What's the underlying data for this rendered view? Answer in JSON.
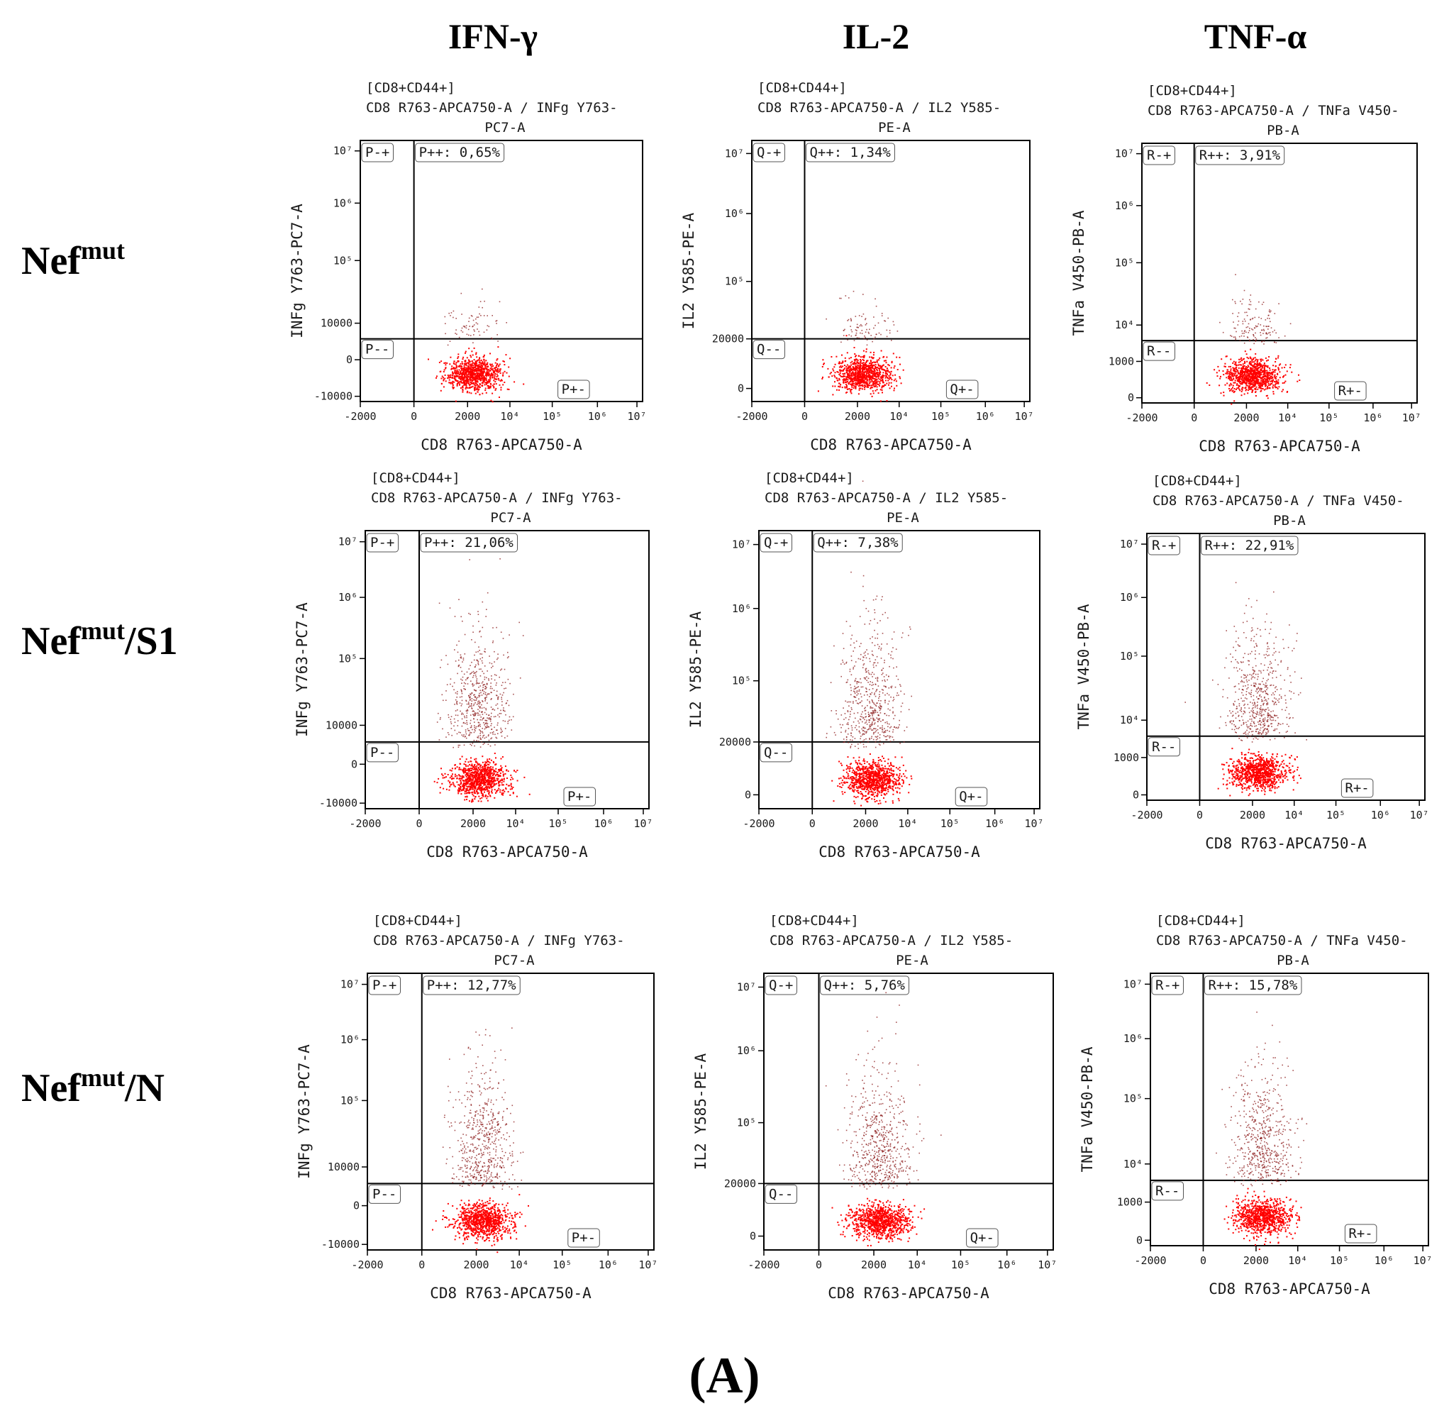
{
  "column_headers": [
    "IFN-γ",
    "IL-2",
    "TNF-α"
  ],
  "rows": [
    {
      "base": "Nef",
      "sup": "mut",
      "suffix": ""
    },
    {
      "base": "Nef",
      "sup": "mut",
      "suffix": "/S1"
    },
    {
      "base": "Nef",
      "sup": "mut",
      "suffix": "/N"
    }
  ],
  "panel_label": "(A)",
  "chart_data": [
    {
      "type": "scatter",
      "row": "Nefmut",
      "cytokine": "IFN-γ",
      "title_lines": [
        "[CD8+CD44+]",
        "CD8 R763-APCA750-A / INFg Y763-",
        "PC7-A"
      ],
      "xlabel": "CD8 R763-APCA750-A",
      "ylabel": "INFg Y763-PC7-A",
      "xticks": [
        "-2000",
        "0",
        "2000",
        "10⁴",
        "10⁵",
        "10⁶",
        "10⁷"
      ],
      "yticks": [
        "10⁷",
        "10⁶",
        "10⁵",
        "10000",
        "0",
        "-10000"
      ],
      "quadrants": {
        "upper_left": "P-+",
        "upper_right": "P++: 0,65%",
        "lower_left": "P--",
        "lower_right": "P+-"
      },
      "positive_percent": 0.65,
      "dim_fraction": 0.005
    },
    {
      "type": "scatter",
      "row": "Nefmut",
      "cytokine": "IL-2",
      "title_lines": [
        "[CD8+CD44+]",
        "CD8 R763-APCA750-A / IL2 Y585-",
        "PE-A"
      ],
      "xlabel": "CD8 R763-APCA750-A",
      "ylabel": "IL2 Y585-PE-A",
      "xticks": [
        "-2000",
        "0",
        "2000",
        "10⁴",
        "10⁵",
        "10⁶",
        "10⁷"
      ],
      "yticks": [
        "10⁷",
        "10⁶",
        "10⁵",
        "20000",
        "0"
      ],
      "quadrants": {
        "upper_left": "Q-+",
        "upper_right": "Q++: 1,34%",
        "lower_left": "Q--",
        "lower_right": "Q+-"
      },
      "positive_percent": 1.34,
      "dim_fraction": 0.01
    },
    {
      "type": "scatter",
      "row": "Nefmut",
      "cytokine": "TNF-α",
      "title_lines": [
        "[CD8+CD44+]",
        "CD8 R763-APCA750-A / TNFa V450-",
        "PB-A"
      ],
      "xlabel": "CD8 R763-APCA750-A",
      "ylabel": "TNFa V450-PB-A",
      "xticks": [
        "-2000",
        "0",
        "2000",
        "10⁴",
        "10⁵",
        "10⁶",
        "10⁷"
      ],
      "yticks": [
        "10⁷",
        "10⁶",
        "10⁵",
        "10⁴",
        "1000",
        "0"
      ],
      "quadrants": {
        "upper_left": "R-+",
        "upper_right": "R++: 3,91%",
        "lower_left": "R--",
        "lower_right": "R+-"
      },
      "positive_percent": 3.91,
      "dim_fraction": 0.03
    },
    {
      "type": "scatter",
      "row": "Nefmut/S1",
      "cytokine": "IFN-γ",
      "title_lines": [
        "[CD8+CD44+]",
        "CD8 R763-APCA750-A / INFg Y763-",
        "PC7-A"
      ],
      "xlabel": "CD8 R763-APCA750-A",
      "ylabel": "INFg Y763-PC7-A",
      "xticks": [
        "-2000",
        "0",
        "2000",
        "10⁴",
        "10⁵",
        "10⁶",
        "10⁷"
      ],
      "yticks": [
        "10⁷",
        "10⁶",
        "10⁵",
        "10000",
        "0",
        "-10000"
      ],
      "quadrants": {
        "upper_left": "P-+",
        "upper_right": "P++: 21,06%",
        "lower_left": "P--",
        "lower_right": "P+-"
      },
      "positive_percent": 21.06,
      "dim_fraction": 0.2
    },
    {
      "type": "scatter",
      "row": "Nefmut/S1",
      "cytokine": "IL-2",
      "title_lines": [
        "[CD8+CD44+]",
        "CD8 R763-APCA750-A / IL2 Y585-",
        "PE-A"
      ],
      "xlabel": "CD8 R763-APCA750-A",
      "ylabel": "IL2 Y585-PE-A",
      "xticks": [
        "-2000",
        "0",
        "2000",
        "10⁴",
        "10⁵",
        "10⁶",
        "10⁷"
      ],
      "yticks": [
        "10⁷",
        "10⁶",
        "10⁵",
        "20000",
        "0"
      ],
      "quadrants": {
        "upper_left": "Q-+",
        "upper_right": "Q++: 7,38%",
        "lower_left": "Q--",
        "lower_right": "Q+-"
      },
      "positive_percent": 7.38,
      "dim_fraction": 0.2
    },
    {
      "type": "scatter",
      "row": "Nefmut/S1",
      "cytokine": "TNF-α",
      "title_lines": [
        "[CD8+CD44+]",
        "CD8 R763-APCA750-A / TNFa V450-",
        "PB-A"
      ],
      "xlabel": "CD8 R763-APCA750-A",
      "ylabel": "TNFa V450-PB-A",
      "xticks": [
        "-2000",
        "0",
        "2000",
        "10⁴",
        "10⁵",
        "10⁶",
        "10⁷"
      ],
      "yticks": [
        "10⁷",
        "10⁶",
        "10⁵",
        "10⁴",
        "1000",
        "0"
      ],
      "quadrants": {
        "upper_left": "R-+",
        "upper_right": "R++: 22,91%",
        "lower_left": "R--",
        "lower_right": "R+-"
      },
      "positive_percent": 22.91,
      "dim_fraction": 0.2
    },
    {
      "type": "scatter",
      "row": "Nefmut/N",
      "cytokine": "IFN-γ",
      "title_lines": [
        "[CD8+CD44+]",
        "CD8 R763-APCA750-A / INFg Y763-",
        "PC7-A"
      ],
      "xlabel": "CD8 R763-APCA750-A",
      "ylabel": "INFg Y763-PC7-A",
      "xticks": [
        "-2000",
        "0",
        "2000",
        "10⁴",
        "10⁵",
        "10⁶",
        "10⁷"
      ],
      "yticks": [
        "10⁷",
        "10⁶",
        "10⁵",
        "10000",
        "0",
        "-10000"
      ],
      "quadrants": {
        "upper_left": "P-+",
        "upper_right": "P++: 12,77%",
        "lower_left": "P--",
        "lower_right": "P+-"
      },
      "positive_percent": 12.77,
      "dim_fraction": 0.2
    },
    {
      "type": "scatter",
      "row": "Nefmut/N",
      "cytokine": "IL-2",
      "title_lines": [
        "[CD8+CD44+]",
        "CD8 R763-APCA750-A / IL2 Y585-",
        "PE-A"
      ],
      "xlabel": "CD8 R763-APCA750-A",
      "ylabel": "IL2 Y585-PE-A",
      "xticks": [
        "-2000",
        "0",
        "2000",
        "10⁴",
        "10⁵",
        "10⁶",
        "10⁷"
      ],
      "yticks": [
        "10⁷",
        "10⁶",
        "10⁵",
        "20000",
        "0"
      ],
      "quadrants": {
        "upper_left": "Q-+",
        "upper_right": "Q++: 5,76%",
        "lower_left": "Q--",
        "lower_right": "Q+-"
      },
      "positive_percent": 5.76,
      "dim_fraction": 0.2
    },
    {
      "type": "scatter",
      "row": "Nefmut/N",
      "cytokine": "TNF-α",
      "title_lines": [
        "[CD8+CD44+]",
        "CD8 R763-APCA750-A / TNFa V450-",
        "PB-A"
      ],
      "xlabel": "CD8 R763-APCA750-A",
      "ylabel": "TNFa V450-PB-A",
      "xticks": [
        "-2000",
        "0",
        "2000",
        "10⁴",
        "10⁵",
        "10⁶",
        "10⁷"
      ],
      "yticks": [
        "10⁷",
        "10⁶",
        "10⁵",
        "10⁴",
        "1000",
        "0"
      ],
      "quadrants": {
        "upper_left": "R-+",
        "upper_right": "R++: 15,78%",
        "lower_left": "R--",
        "lower_right": "R+-"
      },
      "positive_percent": 15.78,
      "dim_fraction": 0.2
    }
  ],
  "colors": {
    "dots_dense": "#ff0000",
    "dots_sparse": "#8b1a1a",
    "axis": "#000000"
  }
}
